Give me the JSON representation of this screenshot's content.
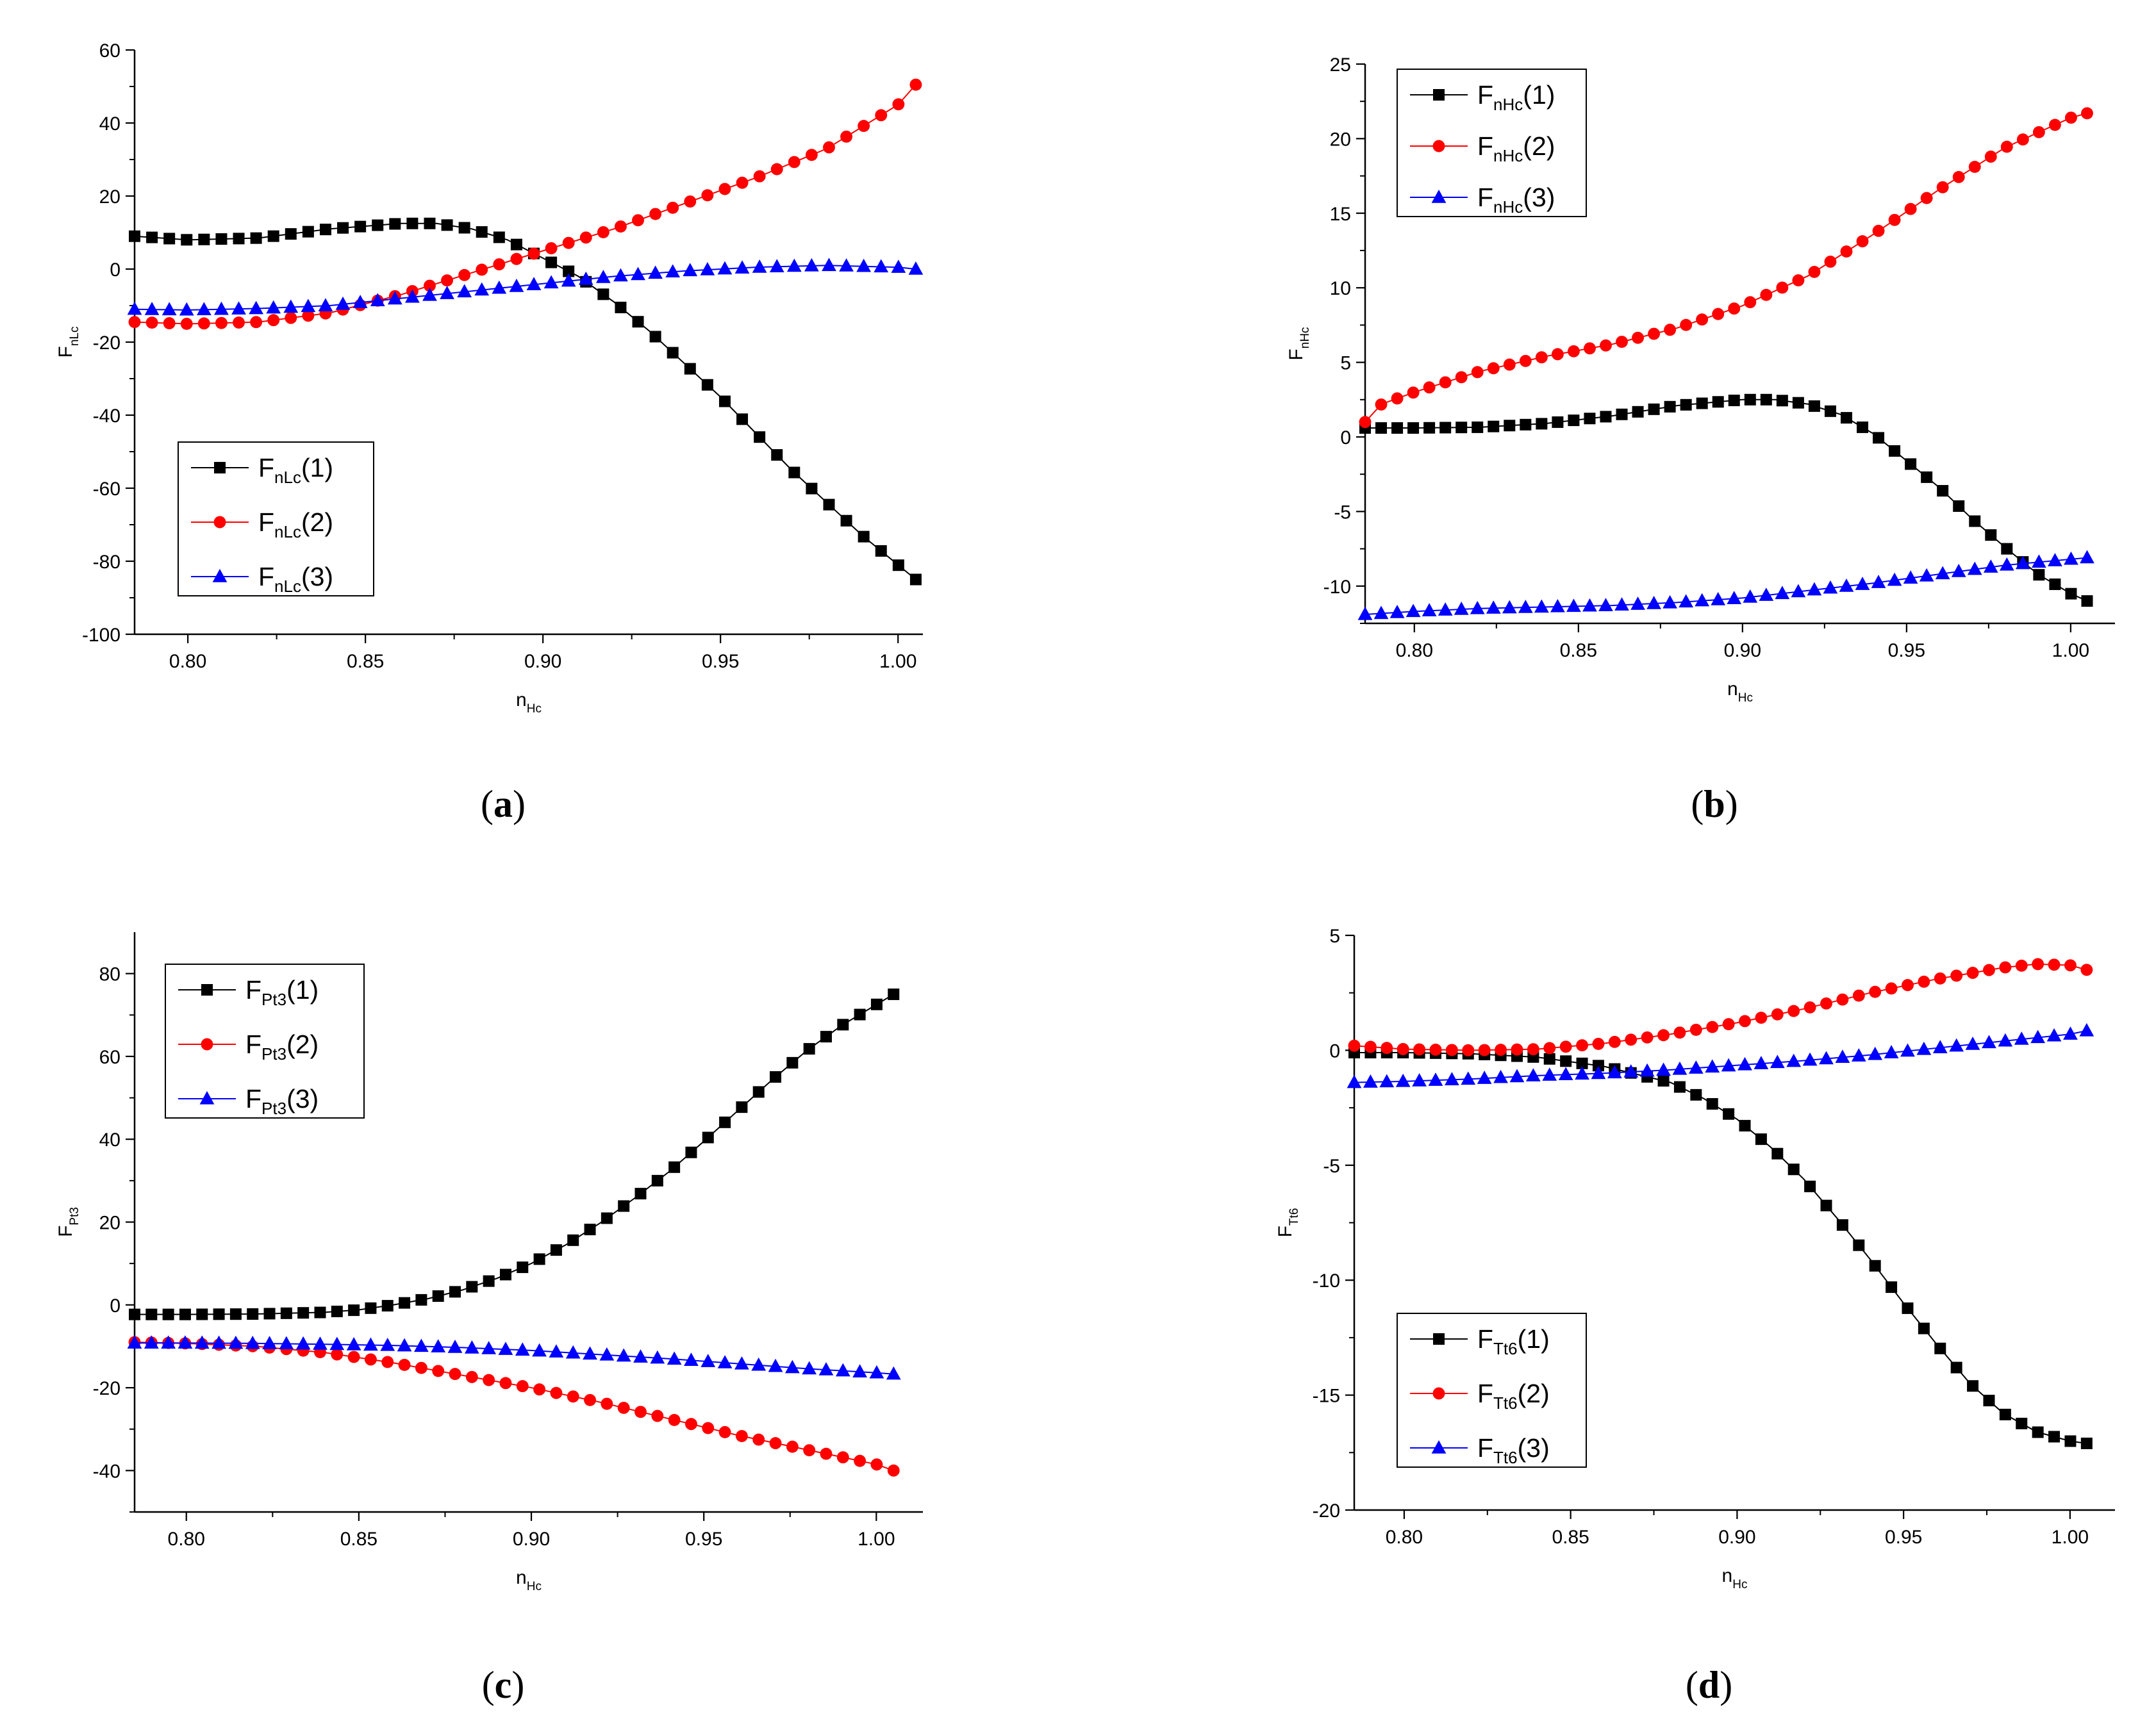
{
  "chart_data": [
    {
      "type": "line",
      "panel_label": "a",
      "xlabel": {
        "main": "n",
        "sub": "Hc"
      },
      "ylabel": {
        "main": "F",
        "sub": "nLc"
      },
      "xlim": [
        0.785,
        1.007
      ],
      "ylim": [
        -100,
        60
      ],
      "xticks": [
        "0.80",
        "0.85",
        "0.90",
        "0.95",
        "1.00"
      ],
      "yticks": [
        "60",
        "40",
        "20",
        "0",
        "-20",
        "-40",
        "-60",
        "-80",
        "-100"
      ],
      "legend_position": "lower-left",
      "series": [
        {
          "name": "F",
          "name_sub": "nLc",
          "name_suffix": "(1)",
          "marker": "square",
          "color": "#000000",
          "x": [
            0.785,
            0.8,
            0.82,
            0.84,
            0.86,
            0.87,
            0.88,
            0.89,
            0.9,
            0.91,
            0.92,
            0.93,
            0.94,
            0.95,
            0.96,
            0.97,
            0.98,
            0.99,
            1.0,
            1.005
          ],
          "y": [
            9,
            8,
            8.5,
            11,
            12.5,
            12.5,
            11,
            8,
            3,
            -2,
            -9,
            -17,
            -26,
            -35,
            -45,
            -55,
            -64,
            -73,
            -81,
            -85
          ]
        },
        {
          "name": "F",
          "name_sub": "nLc",
          "name_suffix": "(2)",
          "marker": "circle",
          "color": "#ff0000",
          "x": [
            0.785,
            0.8,
            0.82,
            0.84,
            0.86,
            0.88,
            0.9,
            0.92,
            0.94,
            0.96,
            0.98,
            1.0,
            1.005
          ],
          "y": [
            -14.5,
            -15,
            -14.5,
            -12,
            -7,
            -1,
            5,
            11,
            18,
            25,
            33,
            45,
            50.5
          ]
        },
        {
          "name": "F",
          "name_sub": "nLc",
          "name_suffix": "(3)",
          "marker": "triangle",
          "color": "#0000ff",
          "x": [
            0.785,
            0.8,
            0.82,
            0.84,
            0.86,
            0.88,
            0.9,
            0.92,
            0.94,
            0.96,
            0.98,
            1.0,
            1.005
          ],
          "y": [
            -11,
            -11.2,
            -10.8,
            -10,
            -8,
            -6,
            -4,
            -2,
            -0.5,
            0.5,
            1,
            0.5,
            0
          ]
        }
      ]
    },
    {
      "type": "line",
      "panel_label": "b",
      "xlabel": {
        "main": "n",
        "sub": "Hc"
      },
      "ylabel": {
        "main": "F",
        "sub": "nHc"
      },
      "xlim": [
        0.785,
        1.0135
      ],
      "ylim": [
        -12.5,
        25
      ],
      "xticks": [
        "0.80",
        "0.85",
        "0.90",
        "0.95",
        "1.00"
      ],
      "yticks": [
        "25",
        "20",
        "15",
        "10",
        "5",
        "0",
        "-5",
        "-10"
      ],
      "legend_position": "upper-left",
      "series": [
        {
          "name": "F",
          "name_sub": "nHc",
          "name_suffix": "(1)",
          "marker": "square",
          "color": "#000000",
          "x": [
            0.785,
            0.8,
            0.82,
            0.84,
            0.86,
            0.88,
            0.9,
            0.91,
            0.92,
            0.93,
            0.94,
            0.95,
            0.96,
            0.97,
            0.98,
            0.99,
            1.0,
            1.005
          ],
          "y": [
            0.6,
            0.6,
            0.65,
            0.9,
            1.4,
            2.1,
            2.5,
            2.5,
            2.2,
            1.5,
            0.2,
            -1.6,
            -3.4,
            -5.5,
            -7.4,
            -9.2,
            -10.5,
            -11
          ]
        },
        {
          "name": "F",
          "name_sub": "nHc",
          "name_suffix": "(2)",
          "marker": "circle",
          "color": "#ff0000",
          "x": [
            0.785,
            0.79,
            0.8,
            0.82,
            0.84,
            0.86,
            0.88,
            0.9,
            0.92,
            0.94,
            0.96,
            0.98,
            1.0,
            1.005
          ],
          "y": [
            1.0,
            2.2,
            3.0,
            4.4,
            5.4,
            6.2,
            7.3,
            8.8,
            10.8,
            13.6,
            16.6,
            19.4,
            21.4,
            21.7
          ]
        },
        {
          "name": "F",
          "name_sub": "nHc",
          "name_suffix": "(3)",
          "marker": "triangle",
          "color": "#0000ff",
          "x": [
            0.785,
            0.8,
            0.82,
            0.84,
            0.86,
            0.88,
            0.9,
            0.92,
            0.94,
            0.96,
            0.98,
            1.0,
            1.005
          ],
          "y": [
            -11.9,
            -11.7,
            -11.5,
            -11.4,
            -11.3,
            -11.1,
            -10.8,
            -10.3,
            -9.8,
            -9.2,
            -8.6,
            -8.2,
            -8.1
          ]
        }
      ]
    },
    {
      "type": "line",
      "panel_label": "c",
      "xlabel": {
        "main": "n",
        "sub": "Hc"
      },
      "ylabel": {
        "main": "F",
        "sub": "Pt3"
      },
      "xlim": [
        0.785,
        1.0135
      ],
      "ylim": [
        -50,
        90
      ],
      "xticks": [
        "0.80",
        "0.85",
        "0.90",
        "0.95",
        "1.00"
      ],
      "yticks": [
        "80",
        "60",
        "40",
        "20",
        "0",
        "-20",
        "-40"
      ],
      "legend_position": "upper-left",
      "series": [
        {
          "name": "F",
          "name_sub": "Pt3",
          "name_suffix": "(1)",
          "marker": "square",
          "color": "#000000",
          "x": [
            0.785,
            0.8,
            0.82,
            0.84,
            0.85,
            0.86,
            0.87,
            0.88,
            0.89,
            0.9,
            0.91,
            0.92,
            0.93,
            0.94,
            0.95,
            0.96,
            0.97,
            0.98,
            0.99,
            1.0,
            1.005
          ],
          "y": [
            -2.3,
            -2.3,
            -2.2,
            -1.8,
            -1.2,
            0,
            1.5,
            3.6,
            6.4,
            10,
            14.5,
            19.8,
            25.8,
            32.2,
            39.5,
            47,
            54.5,
            61.5,
            67.5,
            72.5,
            75
          ]
        },
        {
          "name": "F",
          "name_sub": "Pt3",
          "name_suffix": "(2)",
          "marker": "circle",
          "color": "#ff0000",
          "x": [
            0.785,
            0.8,
            0.82,
            0.84,
            0.86,
            0.88,
            0.9,
            0.92,
            0.94,
            0.96,
            0.98,
            1.0,
            1.005
          ],
          "y": [
            -9,
            -9.3,
            -10,
            -11.5,
            -14,
            -17,
            -20,
            -23.5,
            -27.5,
            -31.5,
            -35,
            -38.5,
            -40
          ]
        },
        {
          "name": "F",
          "name_sub": "Pt3",
          "name_suffix": "(3)",
          "marker": "triangle",
          "color": "#0000ff",
          "x": [
            0.785,
            0.8,
            0.82,
            0.84,
            0.86,
            0.88,
            0.9,
            0.92,
            0.94,
            0.96,
            0.98,
            1.0,
            1.005
          ],
          "y": [
            -9.2,
            -9.2,
            -9.3,
            -9.5,
            -9.8,
            -10.3,
            -11,
            -12,
            -13,
            -14.2,
            -15.4,
            -16.4,
            -16.7
          ]
        }
      ]
    },
    {
      "type": "line",
      "panel_label": "d",
      "xlabel": {
        "main": "n",
        "sub": "Hc"
      },
      "ylabel": {
        "main": "F",
        "sub": "Tt6"
      },
      "xlim": [
        0.785,
        1.0135
      ],
      "ylim": [
        -20,
        5
      ],
      "xticks": [
        "0.80",
        "0.85",
        "0.90",
        "0.95",
        "1.00"
      ],
      "yticks": [
        "5",
        "0",
        "-5",
        "-10",
        "-15",
        "-20"
      ],
      "legend_position": "lower-left",
      "series": [
        {
          "name": "F",
          "name_sub": "Tt6",
          "name_suffix": "(1)",
          "marker": "square",
          "color": "#000000",
          "x": [
            0.785,
            0.8,
            0.82,
            0.84,
            0.86,
            0.88,
            0.89,
            0.9,
            0.91,
            0.92,
            0.93,
            0.94,
            0.95,
            0.96,
            0.97,
            0.98,
            0.99,
            1.0,
            1.005
          ],
          "y": [
            -0.1,
            -0.1,
            -0.15,
            -0.3,
            -0.7,
            -1.4,
            -2.1,
            -3.0,
            -4.2,
            -5.6,
            -7.3,
            -9.1,
            -11.0,
            -12.8,
            -14.5,
            -15.8,
            -16.6,
            -17.0,
            -17.1
          ]
        },
        {
          "name": "F",
          "name_sub": "Tt6",
          "name_suffix": "(2)",
          "marker": "circle",
          "color": "#ff0000",
          "x": [
            0.785,
            0.8,
            0.82,
            0.84,
            0.86,
            0.88,
            0.9,
            0.92,
            0.94,
            0.96,
            0.98,
            0.99,
            1.0,
            1.005
          ],
          "y": [
            0.2,
            0.05,
            0.0,
            0.05,
            0.3,
            0.7,
            1.2,
            1.8,
            2.5,
            3.1,
            3.6,
            3.75,
            3.7,
            3.5
          ]
        },
        {
          "name": "F",
          "name_sub": "Tt6",
          "name_suffix": "(3)",
          "marker": "triangle",
          "color": "#0000ff",
          "x": [
            0.785,
            0.8,
            0.82,
            0.84,
            0.86,
            0.88,
            0.9,
            0.92,
            0.94,
            0.96,
            0.98,
            1.0,
            1.005
          ],
          "y": [
            -1.4,
            -1.35,
            -1.25,
            -1.1,
            -1.0,
            -0.85,
            -0.65,
            -0.45,
            -0.2,
            0.1,
            0.4,
            0.7,
            0.85
          ]
        }
      ]
    }
  ]
}
